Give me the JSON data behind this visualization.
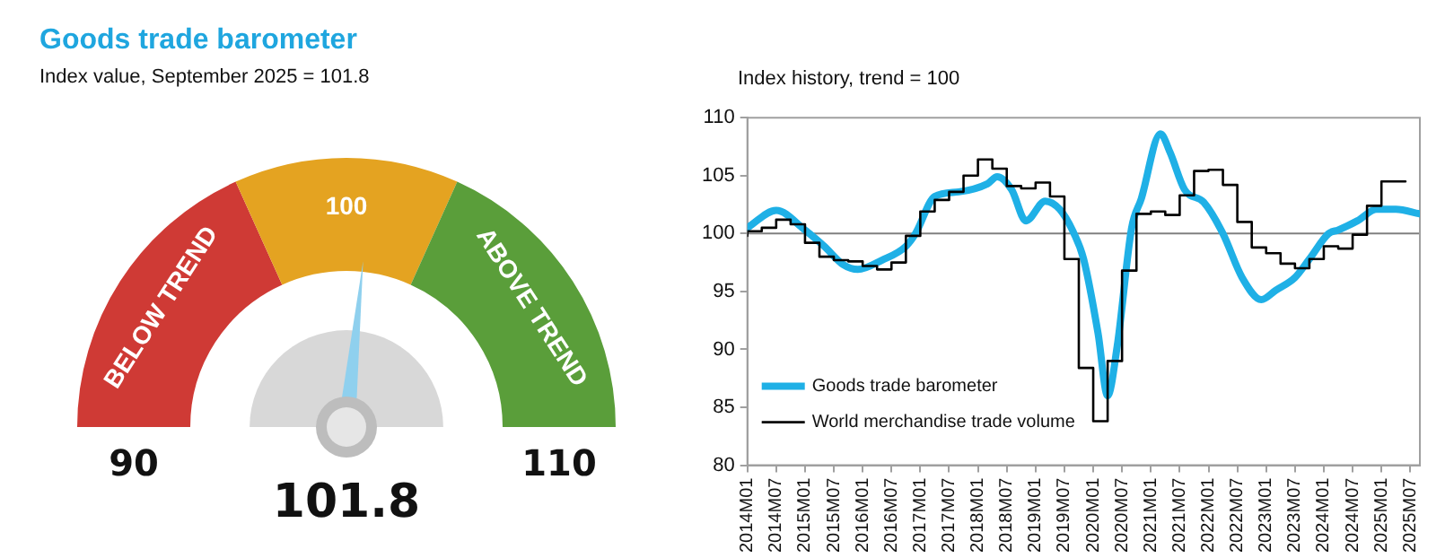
{
  "chart_data": [
    {
      "type": "donut",
      "title": "Goods trade barometer",
      "subtitle": "Index value, September 2025 = 101.8",
      "categories": [
        "BELOW TREND",
        "100",
        "ABOVE TREND"
      ],
      "values": [
        36.5,
        27,
        36.5
      ],
      "colors": [
        "#cf3a35",
        "#e4a321",
        "#5a9e3a"
      ],
      "needle": "100",
      "annotations": [
        "90",
        "110",
        "101.8"
      ]
    },
    {
      "type": "line",
      "title": "Index history, trend = 100",
      "series": [
        {
          "name": "Goods trade barometer",
          "color": "#1fb0e6",
          "x": [
            "2014-01",
            "2014-07",
            "2015-01",
            "2015-05",
            "2015-09",
            "2015-12",
            "2016-05",
            "2016-10",
            "2016-12",
            "2017-04",
            "2017-09",
            "2018-03",
            "2018-05",
            "2018-08",
            "2018-11",
            "2019-03",
            "2019-06",
            "2019-09",
            "2019-11",
            "2020-02",
            "2020-04",
            "2020-06",
            "2020-09",
            "2020-11",
            "2021-03",
            "2021-05",
            "2021-08",
            "2021-12",
            "2022-04",
            "2022-08",
            "2022-12",
            "2023-03",
            "2023-07",
            "2023-10",
            "2024-02",
            "2024-04",
            "2024-08",
            "2024-12",
            "2025-04",
            "2025-09"
          ],
          "values": [
            100.5,
            102.0,
            100.3,
            98.9,
            97.3,
            96.9,
            97.7,
            98.9,
            100,
            103.2,
            103.6,
            104.3,
            104.9,
            103.8,
            101.1,
            102.8,
            102.1,
            100,
            97.8,
            91.4,
            86,
            90.3,
            100.5,
            103,
            108.6,
            107,
            103.8,
            102.7,
            100,
            96.2,
            94.3,
            95.1,
            96.2,
            97.8,
            100,
            100.3,
            101.1,
            102.1,
            102.1,
            101.7
          ]
        },
        {
          "name": "World merchandise trade volume",
          "color": "#000000",
          "type": "step",
          "x": [
            "2014-01",
            "2014-04",
            "2014-07",
            "2014-10",
            "2015-01",
            "2015-04",
            "2015-07",
            "2015-10",
            "2016-01",
            "2016-04",
            "2016-07",
            "2016-10",
            "2017-01",
            "2017-04",
            "2017-07",
            "2017-10",
            "2018-01",
            "2018-04",
            "2018-07",
            "2018-10",
            "2019-01",
            "2019-04",
            "2019-07",
            "2019-10",
            "2020-01",
            "2020-04",
            "2020-07",
            "2020-10",
            "2021-01",
            "2021-04",
            "2021-07",
            "2021-10",
            "2022-01",
            "2022-04",
            "2022-07",
            "2022-10",
            "2023-01",
            "2023-04",
            "2023-07",
            "2023-10",
            "2024-01",
            "2024-04",
            "2024-07",
            "2024-10",
            "2025-01",
            "2025-04",
            "2025-06"
          ],
          "values": [
            99.8,
            100.2,
            100.5,
            101.2,
            100.8,
            99.2,
            98.0,
            97.7,
            97.6,
            97.2,
            96.9,
            97.5,
            99.8,
            101.9,
            102.9,
            103.6,
            105.0,
            106.4,
            105.6,
            104.1,
            103.9,
            104.4,
            103.2,
            97.8,
            88.4,
            83.8,
            89.0,
            96.8,
            101.7,
            101.9,
            101.6,
            103.3,
            105.4,
            105.5,
            104.2,
            101.0,
            98.8,
            98.3,
            97.4,
            97.0,
            97.8,
            98.9,
            98.7,
            99.9,
            102.4,
            104.5,
            104.5
          ]
        }
      ],
      "xlim": [
        "2014-01",
        "2025-09"
      ],
      "xticks": [
        {
          "value": "2014-01",
          "label": "2014M01"
        },
        {
          "value": "2014-07",
          "label": "2014M07"
        },
        {
          "value": "2015-01",
          "label": "2015M01"
        },
        {
          "value": "2015-07",
          "label": "2015M07"
        },
        {
          "value": "2016-01",
          "label": "2016M01"
        },
        {
          "value": "2016-07",
          "label": "2016M07"
        },
        {
          "value": "2017-01",
          "label": "2017M01"
        },
        {
          "value": "2017-07",
          "label": "2017M07"
        },
        {
          "value": "2018-01",
          "label": "2018M01"
        },
        {
          "value": "2018-07",
          "label": "2018M07"
        },
        {
          "value": "2019-01",
          "label": "2019M01"
        },
        {
          "value": "2019-07",
          "label": "2019M07"
        },
        {
          "value": "2020-01",
          "label": "2020M01"
        },
        {
          "value": "2020-07",
          "label": "2020M07"
        },
        {
          "value": "2021-01",
          "label": "2021M01"
        },
        {
          "value": "2021-07",
          "label": "2021M07"
        },
        {
          "value": "2022-01",
          "label": "2022M01"
        },
        {
          "value": "2022-07",
          "label": "2022M07"
        },
        {
          "value": "2023-01",
          "label": "2023M01"
        },
        {
          "value": "2023-07",
          "label": "2023M07"
        },
        {
          "value": "2024-01",
          "label": "2024M01"
        },
        {
          "value": "2024-07",
          "label": "2024M07"
        },
        {
          "value": "2025-01",
          "label": "2025M01"
        },
        {
          "value": "2025-07",
          "label": "2025M07"
        }
      ],
      "ylim": [
        80,
        110
      ],
      "yticks": [
        80,
        85,
        90,
        95,
        100,
        105,
        110
      ],
      "ref_lines": [
        {
          "axis": "y",
          "value": 100,
          "color": "#808080"
        }
      ],
      "grid": false,
      "legend": "bottom left",
      "marker": "none",
      "line_style": "solid"
    }
  ]
}
